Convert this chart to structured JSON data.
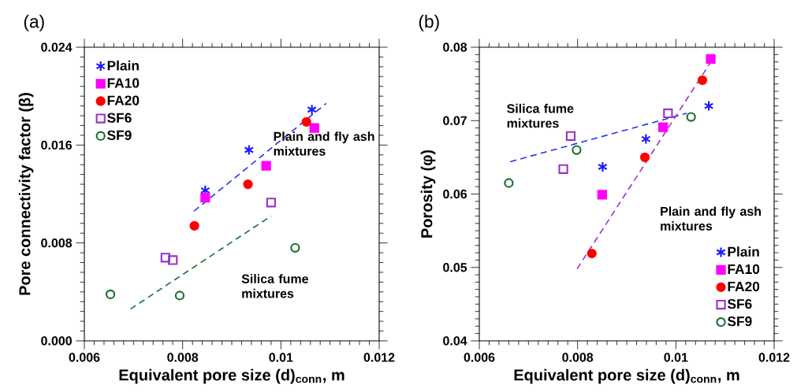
{
  "chart_data": [
    {
      "type": "scatter",
      "title": "(a)",
      "xlabel": "Equivalent pore size (d)$_{conn}$, m",
      "ylabel": "Pore connectivity factor (β)",
      "xlim": [
        0.006,
        0.012
      ],
      "xticks": [
        0.006,
        0.008,
        0.01,
        0.012
      ],
      "ylim": [
        0.0,
        0.024
      ],
      "yticks": [
        {
          "value": 0.0,
          "label": "0.000"
        },
        {
          "value": 0.008,
          "label": "0.008"
        },
        {
          "value": 0.016,
          "label": "0.016"
        },
        {
          "value": 0.024,
          "label": "0.024"
        }
      ],
      "legend": "top left",
      "grid": false,
      "annotations": [
        "Plain and fly ash mixtures",
        "Silica fume mixtures"
      ],
      "series": [
        {
          "name": "Plain",
          "color": "#1a1aff",
          "marker": "cross",
          "x": [
            0.00846,
            0.00935,
            0.01063
          ],
          "values": [
            0.0123,
            0.0156,
            0.0189
          ]
        },
        {
          "name": "FA10",
          "color": "#ff00ff",
          "marker": "square",
          "x": [
            0.00846,
            0.0097,
            0.01068
          ],
          "values": [
            0.0117,
            0.0143,
            0.0174
          ]
        },
        {
          "name": "FA20",
          "color": "#ff0000",
          "marker": "circle",
          "x": [
            0.00824,
            0.00933,
            0.01052
          ],
          "values": [
            0.0094,
            0.0128,
            0.0179
          ]
        },
        {
          "name": "SF6",
          "color": "#9933cc",
          "marker": "square",
          "x": [
            0.00765,
            0.0078,
            0.0098
          ],
          "values": [
            0.0068,
            0.0066,
            0.0113
          ]
        },
        {
          "name": "SF9",
          "color": "#1a6e2e",
          "marker": "circle",
          "x": [
            0.00653,
            0.00794,
            0.01029
          ],
          "values": [
            0.0038,
            0.0037,
            0.0076
          ]
        },
        {
          "type": "line",
          "color": "#2233ee",
          "line_style": "dashed",
          "marker": "none",
          "x": [
            0.00823,
            0.01092
          ],
          "values": [
            0.0106,
            0.0194
          ]
        },
        {
          "type": "line",
          "color": "#1a6e2e",
          "line_style": "dashed",
          "marker": "none",
          "x": [
            0.00694,
            0.0098
          ],
          "values": [
            0.0026,
            0.0102
          ]
        }
      ]
    },
    {
      "type": "scatter",
      "title": "(b)",
      "xlabel": "Equivalent pore size (d)$_{conn}$, m",
      "ylabel": "Porosity (φ)",
      "xlim": [
        0.006,
        0.012
      ],
      "xticks": [
        0.006,
        0.008,
        0.01,
        0.012
      ],
      "ylim": [
        0.04,
        0.08
      ],
      "yticks": [
        0.04,
        0.05,
        0.06,
        0.07,
        0.08
      ],
      "legend": "bottom right",
      "grid": false,
      "annotations": [
        "Silica fume mixtures",
        "Plain and fly ash mixtures"
      ],
      "series": [
        {
          "name": "Plain",
          "color": "#1a1aff",
          "marker": "cross",
          "x": [
            0.00851,
            0.00939,
            0.01067
          ],
          "values": [
            0.0637,
            0.0675,
            0.072
          ]
        },
        {
          "name": "FA10",
          "color": "#ff00ff",
          "marker": "square",
          "x": [
            0.0085,
            0.00974,
            0.01071
          ],
          "values": [
            0.0599,
            0.0691,
            0.0784
          ]
        },
        {
          "name": "FA20",
          "color": "#ff0000",
          "marker": "circle",
          "x": [
            0.00829,
            0.00937,
            0.01054
          ],
          "values": [
            0.0519,
            0.065,
            0.0755
          ]
        },
        {
          "name": "SF6",
          "color": "#9933cc",
          "marker": "square",
          "x": [
            0.00786,
            0.00771,
            0.00984
          ],
          "values": [
            0.0679,
            0.0634,
            0.071
          ]
        },
        {
          "name": "SF9",
          "color": "#1a6e2e",
          "marker": "circle",
          "x": [
            0.0066,
            0.00798,
            0.01031
          ],
          "values": [
            0.0615,
            0.066,
            0.0705
          ]
        },
        {
          "type": "line",
          "color": "#2233ee",
          "line_style": "dashed",
          "marker": "none",
          "x": [
            0.00663,
            0.01022
          ],
          "values": [
            0.0644,
            0.071
          ]
        },
        {
          "type": "line",
          "color": "#9933cc",
          "line_style": "dashed",
          "marker": "none",
          "x": [
            0.00799,
            0.01077
          ],
          "values": [
            0.0498,
            0.0786
          ]
        }
      ]
    }
  ]
}
